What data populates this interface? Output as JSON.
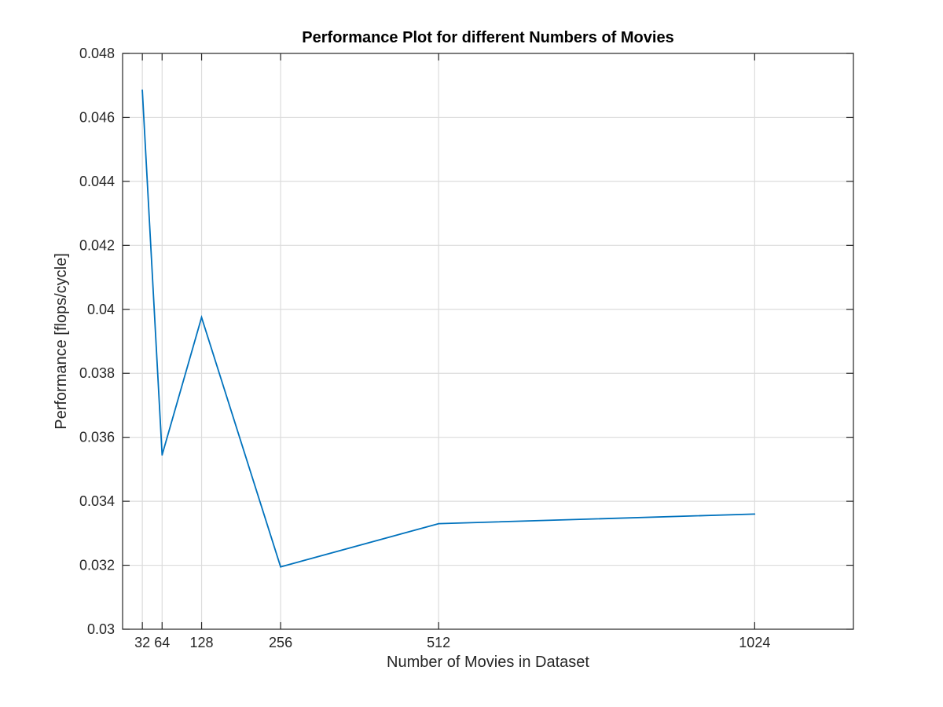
{
  "chart_data": {
    "type": "line",
    "title": "Performance Plot for different Numbers of Movies",
    "xlabel": "Number of Movies in Dataset",
    "ylabel": "Performance [flops/cycle]",
    "xlim": [
      0,
      1184
    ],
    "ylim": [
      0.03,
      0.048
    ],
    "x_ticks": [
      32,
      64,
      128,
      256,
      512,
      1024
    ],
    "x_tick_labels": [
      "32",
      "64",
      "128",
      "256",
      "512",
      "1024"
    ],
    "y_ticks": [
      0.03,
      0.032,
      0.034,
      0.036,
      0.038,
      0.04,
      0.042,
      0.044,
      0.046,
      0.048
    ],
    "y_tick_labels": [
      "0.03",
      "0.032",
      "0.034",
      "0.036",
      "0.038",
      "0.04",
      "0.042",
      "0.044",
      "0.046",
      "0.048"
    ],
    "grid": true,
    "series": [
      {
        "color": "#0072bd",
        "x": [
          32,
          64,
          128,
          256,
          512,
          1024
        ],
        "y": [
          0.04685,
          0.03545,
          0.03975,
          0.03195,
          0.0333,
          0.0336
        ]
      }
    ]
  }
}
